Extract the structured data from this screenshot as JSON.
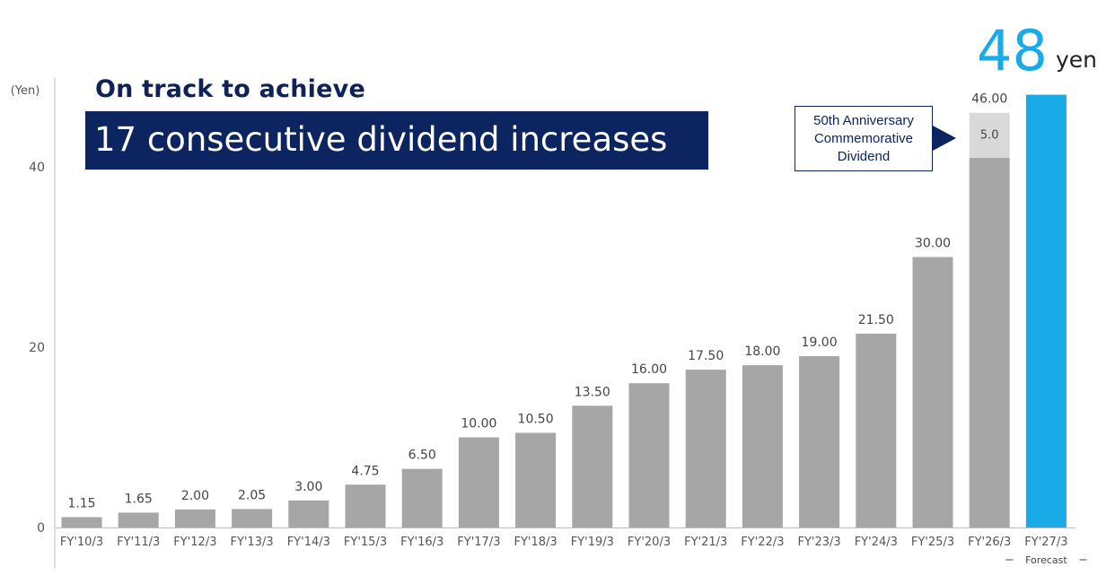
{
  "headline": {
    "subtitle": "On track to achieve",
    "title": "17 consecutive dividend increases"
  },
  "highlight": {
    "value": "48",
    "unit": "yen"
  },
  "callout": {
    "text": "50th Anniversary\nCommemorative\nDividend"
  },
  "colors": {
    "bar": "#a6a6a6",
    "bar_special": "#d9d9d9",
    "forecast_bar": "#1aaae8",
    "navy": "#0c2460"
  },
  "chart_data": {
    "type": "bar",
    "ylabel": "(Yen)",
    "ylim": [
      0,
      48
    ],
    "yticks": [
      0,
      20,
      40
    ],
    "grid": false,
    "categories": [
      "FY'10/3",
      "FY'11/3",
      "FY'12/3",
      "FY'13/3",
      "FY'14/3",
      "FY'15/3",
      "FY'16/3",
      "FY'17/3",
      "FY'18/3",
      "FY'19/3",
      "FY'20/3",
      "FY'21/3",
      "FY'22/3",
      "FY'23/3",
      "FY'24/3",
      "FY'25/3",
      "FY'26/3",
      "FY'27/3"
    ],
    "values": [
      1.15,
      1.65,
      2.0,
      2.05,
      3.0,
      4.75,
      6.5,
      10.0,
      10.5,
      13.5,
      16.0,
      17.5,
      18.0,
      19.0,
      21.5,
      30.0,
      46.0,
      48
    ],
    "value_labels": [
      "1.15",
      "1.65",
      "2.00",
      "2.05",
      "3.00",
      "4.75",
      "6.50",
      "10.00",
      "10.50",
      "13.50",
      "16.00",
      "17.50",
      "18.00",
      "19.00",
      "21.50",
      "30.00",
      "46.00",
      ""
    ],
    "commemorative": {
      "category": "FY'26/3",
      "value": 5.0,
      "label": "5.0"
    },
    "forecast": {
      "category": "FY'27/3",
      "label": "Forecast"
    }
  }
}
